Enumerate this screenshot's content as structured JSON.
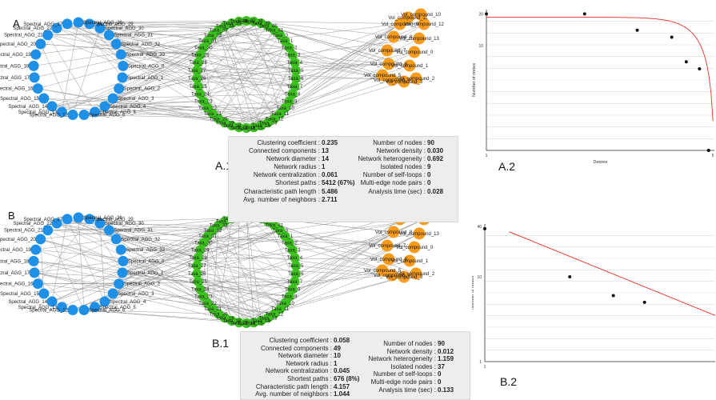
{
  "panels": [
    {
      "id": "A",
      "letter": "A",
      "network_label": "A.1",
      "plot_label": "A.2",
      "stats_left": [
        {
          "label": "Clustering coefficient",
          "value": "0.235"
        },
        {
          "label": "Connected components",
          "value": "13"
        },
        {
          "label": "Network diameter",
          "value": "14"
        },
        {
          "label": "Network radius",
          "value": "1"
        },
        {
          "label": "Network centralization",
          "value": "0.061"
        },
        {
          "label": "Shortest paths",
          "value": "5412 (67%)"
        },
        {
          "label": "Characteristic path length",
          "value": "5.486"
        },
        {
          "label": "Avg. number of neighbors",
          "value": "2.711"
        }
      ],
      "stats_right": [
        {
          "label": "Number of nodes",
          "value": "90"
        },
        {
          "label": "Network density",
          "value": "0.030"
        },
        {
          "label": "Network heterogeneity",
          "value": "0.692"
        },
        {
          "label": "Isolated nodes",
          "value": "9"
        },
        {
          "label": "Number of self-loops",
          "value": "0"
        },
        {
          "label": "Multi-edge node pairs",
          "value": "0"
        },
        {
          "label": "Analysis time (sec)",
          "value": "0.028"
        }
      ]
    },
    {
      "id": "B",
      "letter": "B",
      "network_label": "B.1",
      "plot_label": "B.2",
      "stats_left": [
        {
          "label": "Clustering coefficient",
          "value": "0.058"
        },
        {
          "label": "Connected components",
          "value": "49"
        },
        {
          "label": "Network diameter",
          "value": "10"
        },
        {
          "label": "Network radius",
          "value": "1"
        },
        {
          "label": "Network centralization",
          "value": "0.045"
        },
        {
          "label": "Shortest paths",
          "value": "676 (8%)"
        },
        {
          "label": "Characteristic path length",
          "value": "4.157"
        },
        {
          "label": "Avg. number of neighbors",
          "value": "1.044"
        }
      ],
      "stats_right": [
        {
          "label": "Number of nodes",
          "value": "90"
        },
        {
          "label": "Network density",
          "value": "0.012"
        },
        {
          "label": "Network heterogeneity",
          "value": "1.159"
        },
        {
          "label": "Isolated nodes",
          "value": "37"
        },
        {
          "label": "Number of self-loops",
          "value": "0"
        },
        {
          "label": "Multi-edge node pairs",
          "value": "0"
        },
        {
          "label": "Analysis time (sec)",
          "value": "0.133"
        }
      ]
    }
  ],
  "networks": {
    "spectral_labels": [
      "Spectral_AGG_28",
      "Spectral_AGG_29",
      "Spectral_AGG_30",
      "Spectral_AGG_31",
      "Spectral_AGG_32",
      "Spectral_AGG_33",
      "Spectral_AGG_0",
      "Spectral_AGG_1",
      "Spectral_AGG_2",
      "Spectral_AGG_3",
      "Spectral_AGG_4",
      "Spectral_AGG_5",
      "Spectral_AGG_6",
      "Spectral_AGG_12",
      "Spectral_AGG_13",
      "Spectral_AGG_14",
      "Spectral_AGG_15",
      "Spectral_AGG_16",
      "Spectral_AGG_17",
      "Spectral_AGG_18",
      "Spectral_AGG_19",
      "Spectral_AGG_20",
      "Spectral_AGG_21",
      "Spectral_AGG_22",
      "Spectral_AGG_27"
    ],
    "taxa_labels": [
      "Taxa_37",
      "Taxa_38",
      "Taxa_39",
      "Taxa_40",
      "Taxa_41",
      "Taxa_0",
      "Taxa_1",
      "Taxa_2",
      "Taxa_3",
      "Taxa_4",
      "Taxa_5",
      "Taxa_6",
      "Taxa_7",
      "Taxa_8",
      "Taxa_9",
      "Taxa_10",
      "Taxa_11",
      "Taxa_12",
      "Taxa_13",
      "Taxa_14",
      "Taxa_15",
      "Taxa_16",
      "Taxa_17",
      "Taxa_18",
      "Taxa_19",
      "Taxa_20",
      "Taxa_21",
      "Taxa_22",
      "Taxa_23",
      "Taxa_24",
      "Taxa_25",
      "Taxa_26",
      "Taxa_27",
      "Taxa_28",
      "Taxa_29",
      "Taxa_30",
      "Taxa_31",
      "Taxa_32",
      "Taxa_33",
      "Taxa_34",
      "Taxa_35",
      "Taxa_36"
    ],
    "compound_labels": [
      "Vol_compound_11",
      "Vol_compound_12",
      "Vol_compound_13",
      "Vol_compound_0",
      "Vol_compound_1",
      "Vol_compound_2",
      "Vol_compound_3",
      "Vol_compound_4",
      "Vol_compound_5",
      "Vol_compound_6",
      "Vol_compound_7",
      "Vol_compound_8",
      "Vol_compound_9",
      "Vol_compound_10"
    ],
    "colors": {
      "spectral": "#1e90e8",
      "taxa": "#3cc01e",
      "compound": "#f79b1c",
      "edge": "#8a8a8a"
    }
  },
  "plots": [
    {
      "id": "A.2",
      "xlabel": "Degree",
      "ylabel": "Number of nodes",
      "y_ticks": [
        "20",
        "10"
      ],
      "x_ticks": [
        "1",
        "5"
      ],
      "log_scale": true,
      "grid": true,
      "points": [
        {
          "x": 1,
          "y": 20
        },
        {
          "x": 2,
          "y": 20
        },
        {
          "x": 2.9,
          "y": 14
        },
        {
          "x": 3.7,
          "y": 12
        },
        {
          "x": 4.1,
          "y": 7
        },
        {
          "x": 4.5,
          "y": 6
        },
        {
          "x": 4.8,
          "y": 1
        }
      ],
      "fit_color": "#e8322a"
    },
    {
      "id": "B.2",
      "xlabel": "Degree",
      "ylabel": "Number of nodes",
      "y_ticks": [
        "40",
        "10",
        "1"
      ],
      "x_ticks": [
        "1"
      ],
      "log_scale": true,
      "grid": true,
      "points": [
        {
          "x": 1,
          "y": 37
        },
        {
          "x": 2.5,
          "y": 10
        },
        {
          "x": 4,
          "y": 6
        },
        {
          "x": 5.6,
          "y": 5
        }
      ],
      "fit_color": "#e8322a"
    }
  ]
}
